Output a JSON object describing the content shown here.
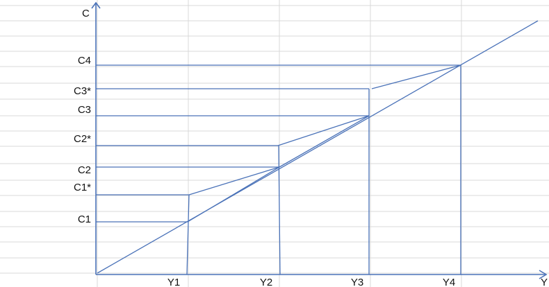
{
  "axes": {
    "y_axis_label": "C",
    "x_axis_label": "Y"
  },
  "y_labels": {
    "c4": "C4",
    "c3_star": "C3*",
    "c3": "C3",
    "c2_star": "C2*",
    "c2": "C2",
    "c1_star": "C1*",
    "c1": "C1"
  },
  "x_labels": {
    "y1": "Y1",
    "y2": "Y2",
    "y3": "Y3",
    "y4": "Y4"
  },
  "colors": {
    "line": "#4a72b8",
    "grid": "#d9d9d9",
    "text": "#111111"
  }
}
